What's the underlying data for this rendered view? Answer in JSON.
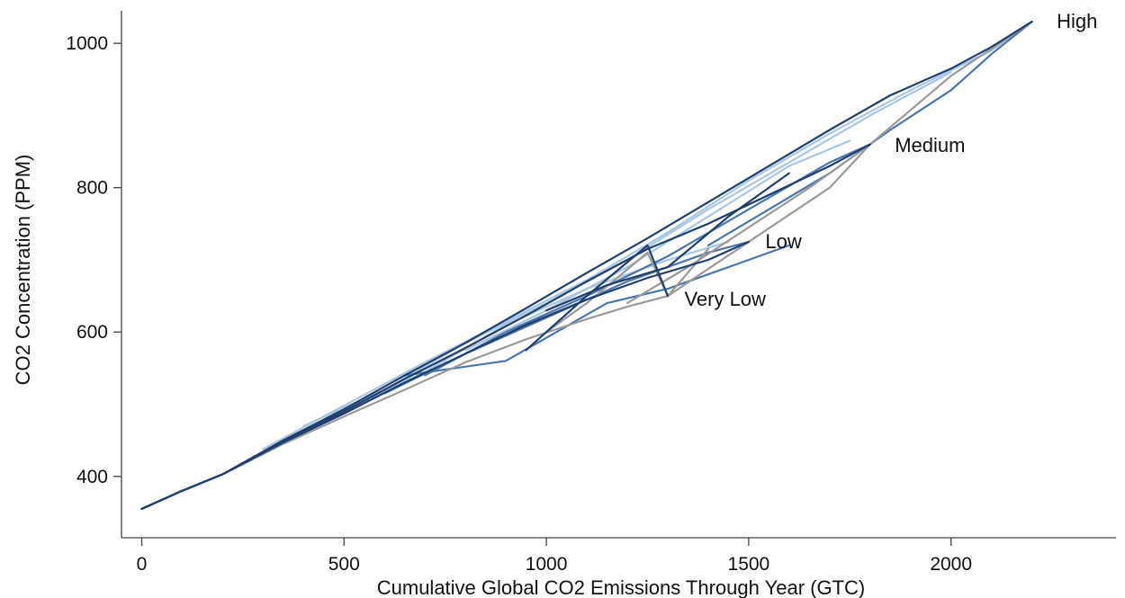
{
  "chart_data": {
    "type": "line",
    "title": "",
    "xlabel": "Cumulative Global CO2 Emissions Through Year (GTC)",
    "ylabel": "CO2 Concentration (PPM)",
    "xlim": [
      -50,
      2430
    ],
    "ylim": [
      315,
      1060
    ],
    "xticks": [
      0,
      500,
      1000,
      1500,
      2000
    ],
    "yticks": [
      400,
      600,
      800,
      1000
    ],
    "grid": false,
    "legend": "none",
    "colors": {
      "dark": "#1f3f6e",
      "mid": "#4a76b0",
      "light": "#a9c6e6",
      "gray": "#9a9a9a"
    },
    "series": [
      {
        "name": "Very Low",
        "label_at": [
          1310,
          645
        ],
        "color": "gray",
        "x": [
          0,
          100,
          200,
          350,
          500,
          650,
          800,
          950,
          1100,
          1200,
          1300
        ],
        "y": [
          355,
          380,
          403,
          445,
          483,
          520,
          558,
          590,
          618,
          635,
          650
        ]
      },
      {
        "name": "Low",
        "label_at": [
          1510,
          725
        ],
        "color": "dark",
        "x": [
          0,
          100,
          200,
          350,
          500,
          650,
          800,
          950,
          1100,
          1250,
          1400,
          1500
        ],
        "y": [
          355,
          380,
          403,
          447,
          487,
          530,
          570,
          610,
          645,
          675,
          700,
          725
        ]
      },
      {
        "name": "Medium",
        "label_at": [
          1830,
          858
        ],
        "color": "dark",
        "x": [
          0,
          100,
          200,
          350,
          500,
          650,
          800,
          950,
          1100,
          1250,
          1400,
          1550,
          1700,
          1800
        ],
        "y": [
          355,
          380,
          403,
          448,
          490,
          535,
          578,
          623,
          670,
          715,
          750,
          790,
          830,
          860
        ]
      },
      {
        "name": "High",
        "label_at": [
          2230,
          1030
        ],
        "color": "dark",
        "x": [
          0,
          100,
          200,
          350,
          500,
          650,
          800,
          950,
          1100,
          1250,
          1400,
          1550,
          1700,
          1850,
          2000,
          2100,
          2200
        ],
        "y": [
          355,
          380,
          403,
          450,
          493,
          540,
          585,
          633,
          682,
          730,
          780,
          830,
          880,
          928,
          965,
          995,
          1030
        ]
      },
      {
        "name": "",
        "color": "gray",
        "x": [
          1000,
          1100,
          1250,
          1300,
          1400
        ],
        "y": [
          600,
          640,
          710,
          650,
          715
        ]
      },
      {
        "name": "",
        "color": "gray",
        "x": [
          1300,
          1500,
          1700,
          1800,
          2000,
          2200
        ],
        "y": [
          650,
          725,
          800,
          860,
          955,
          1030
        ]
      },
      {
        "name": "",
        "color": "light",
        "x": [
          300,
          500,
          700,
          900,
          1100,
          1300,
          1500,
          1700,
          1900,
          2100,
          2200
        ],
        "y": [
          438,
          498,
          558,
          615,
          672,
          738,
          810,
          875,
          935,
          990,
          1030
        ]
      },
      {
        "name": "",
        "color": "light",
        "x": [
          400,
          600,
          800,
          1000,
          1200,
          1400,
          1600,
          1800,
          2000
        ],
        "y": [
          470,
          520,
          585,
          640,
          700,
          770,
          835,
          900,
          960
        ]
      },
      {
        "name": "",
        "color": "mid",
        "x": [
          600,
          800,
          1000,
          1200,
          1400,
          1500
        ],
        "y": [
          515,
          570,
          620,
          670,
          710,
          725
        ]
      },
      {
        "name": "",
        "color": "mid",
        "x": [
          700,
          900,
          1100,
          1300,
          1500,
          1700,
          1800
        ],
        "y": [
          540,
          600,
          650,
          705,
          770,
          835,
          860
        ]
      },
      {
        "name": "",
        "color": "dark",
        "x": [
          950,
          1100,
          1250,
          1300
        ],
        "y": [
          575,
          650,
          720,
          650
        ]
      },
      {
        "name": "",
        "color": "dark",
        "x": [
          1000,
          1150,
          1300,
          1450,
          1600
        ],
        "y": [
          630,
          665,
          690,
          760,
          820
        ]
      },
      {
        "name": "",
        "color": "light",
        "x": [
          500,
          700,
          900,
          1100,
          1300,
          1450
        ],
        "y": [
          490,
          545,
          610,
          660,
          700,
          725
        ]
      },
      {
        "name": "",
        "color": "mid",
        "x": [
          650,
          900,
          1150,
          1300,
          1500,
          1600
        ],
        "y": [
          540,
          560,
          640,
          660,
          700,
          720
        ]
      },
      {
        "name": "",
        "color": "light",
        "x": [
          800,
          1000,
          1200,
          1400,
          1600,
          1750
        ],
        "y": [
          575,
          630,
          690,
          760,
          830,
          865
        ]
      },
      {
        "name": "",
        "color": "gray",
        "x": [
          1200,
          1350,
          1500,
          1650,
          1800
        ],
        "y": [
          640,
          690,
          745,
          800,
          860
        ]
      },
      {
        "name": "",
        "color": "mid",
        "x": [
          1400,
          1550,
          1700,
          1850,
          2000,
          2100,
          2200
        ],
        "y": [
          720,
          770,
          820,
          880,
          935,
          985,
          1030
        ]
      }
    ]
  }
}
